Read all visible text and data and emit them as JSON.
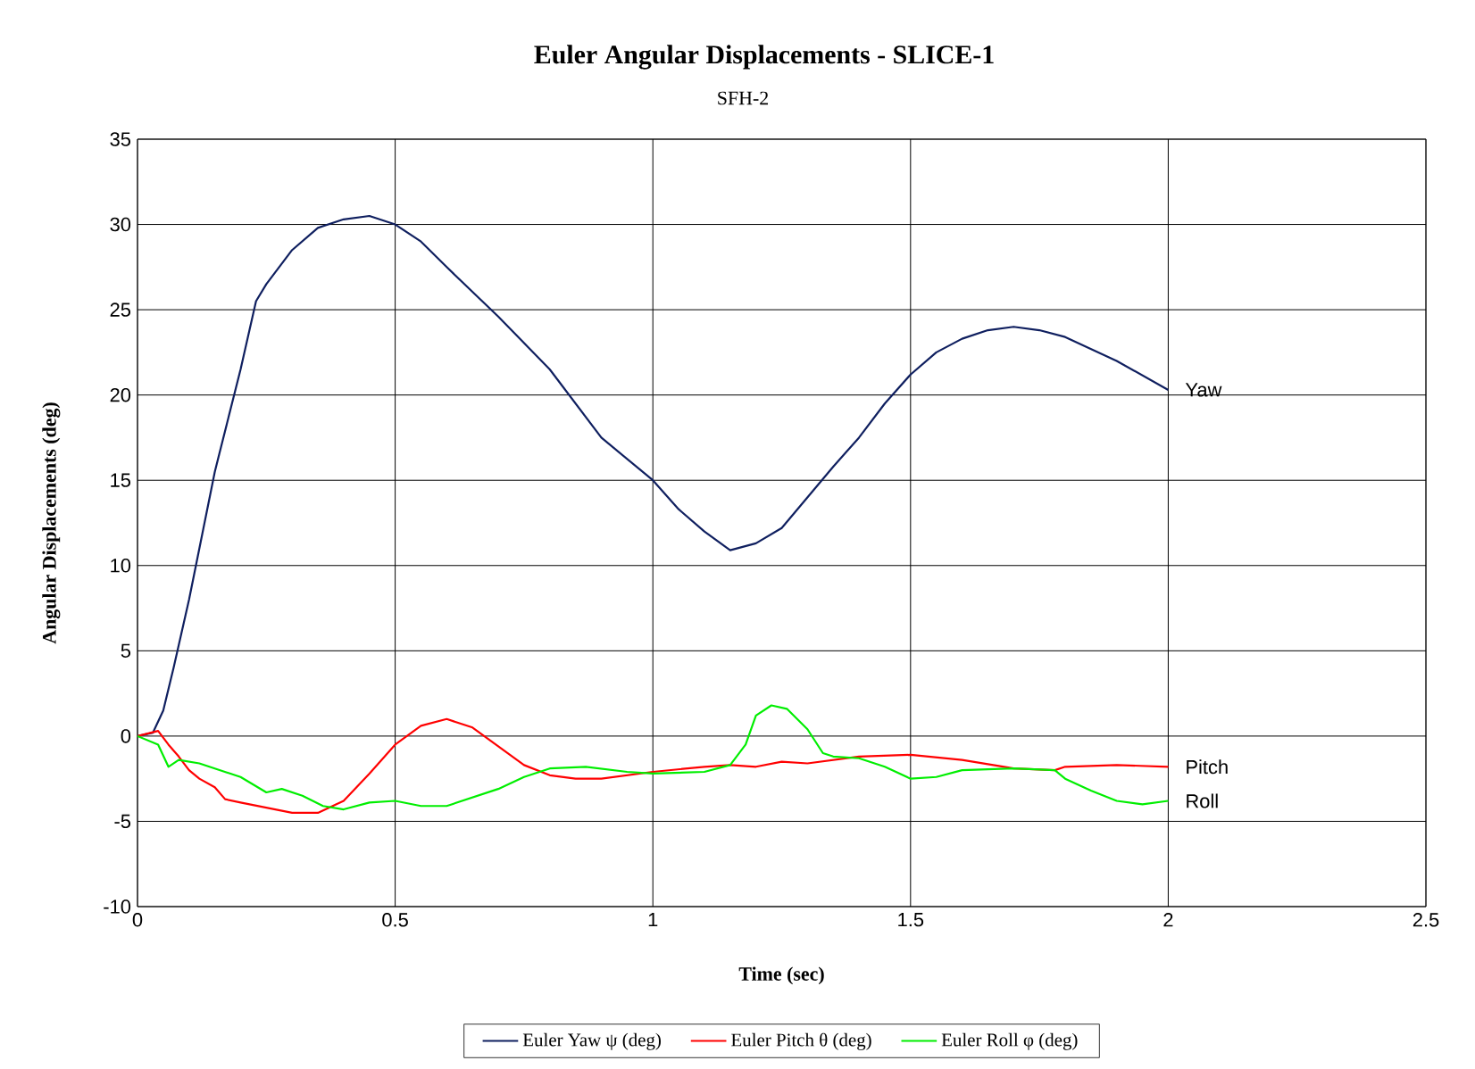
{
  "chart_data": {
    "type": "line",
    "title": "Euler Angular Displacements - SLICE-1",
    "subtitle": "SFH-2",
    "xlabel": "Time (sec)",
    "ylabel": "Angular Displacements (deg)",
    "xlim": [
      0,
      2.5
    ],
    "ylim": [
      -10,
      35
    ],
    "xticks": [
      0,
      0.5,
      1,
      1.5,
      2,
      2.5
    ],
    "yticks": [
      -10,
      -5,
      0,
      5,
      10,
      15,
      20,
      25,
      30,
      35
    ],
    "grid": true,
    "legend": "bottom",
    "marker": "none",
    "line_style": "solid",
    "annotations": [
      "Yaw",
      "Pitch",
      "Roll"
    ],
    "series": [
      {
        "name": "Euler Yaw ψ (deg)",
        "color": "#0f1f5f",
        "x": [
          0,
          0.03,
          0.05,
          0.07,
          0.1,
          0.12,
          0.15,
          0.2,
          0.23,
          0.25,
          0.3,
          0.35,
          0.4,
          0.45,
          0.5,
          0.55,
          0.6,
          0.7,
          0.8,
          0.9,
          1.0,
          1.05,
          1.1,
          1.15,
          1.2,
          1.25,
          1.3,
          1.35,
          1.4,
          1.45,
          1.5,
          1.55,
          1.6,
          1.65,
          1.7,
          1.75,
          1.8,
          1.9,
          2.0
        ],
        "values": [
          0,
          0.2,
          1.5,
          4,
          8,
          11,
          15.5,
          21.5,
          25.5,
          26.5,
          28.5,
          29.8,
          30.3,
          30.5,
          30,
          29,
          27.5,
          24.6,
          21.5,
          17.5,
          15,
          13.3,
          12,
          10.9,
          11.3,
          12.2,
          14,
          15.8,
          17.5,
          19.5,
          21.2,
          22.5,
          23.3,
          23.8,
          24,
          23.8,
          23.4,
          22,
          20.3
        ]
      },
      {
        "name": "Euler Pitch θ (deg)",
        "color": "#ff0000",
        "x": [
          0,
          0.04,
          0.06,
          0.08,
          0.1,
          0.12,
          0.15,
          0.17,
          0.2,
          0.25,
          0.3,
          0.35,
          0.4,
          0.45,
          0.5,
          0.55,
          0.6,
          0.65,
          0.7,
          0.75,
          0.8,
          0.85,
          0.9,
          1.0,
          1.1,
          1.15,
          1.2,
          1.25,
          1.3,
          1.4,
          1.5,
          1.6,
          1.7,
          1.78,
          1.8,
          1.9,
          2.0
        ],
        "values": [
          0,
          0.3,
          -0.5,
          -1.2,
          -2,
          -2.5,
          -3,
          -3.7,
          -3.9,
          -4.2,
          -4.5,
          -4.5,
          -3.8,
          -2.2,
          -0.5,
          0.6,
          1.0,
          0.5,
          -0.6,
          -1.7,
          -2.3,
          -2.5,
          -2.5,
          -2.1,
          -1.8,
          -1.7,
          -1.8,
          -1.5,
          -1.6,
          -1.2,
          -1.1,
          -1.4,
          -1.9,
          -2.0,
          -1.8,
          -1.7,
          -1.8
        ]
      },
      {
        "name": "Euler Roll φ (deg)",
        "color": "#00ee00",
        "x": [
          0,
          0.04,
          0.06,
          0.08,
          0.12,
          0.15,
          0.2,
          0.25,
          0.28,
          0.32,
          0.36,
          0.4,
          0.45,
          0.5,
          0.55,
          0.6,
          0.7,
          0.75,
          0.8,
          0.87,
          0.95,
          1.0,
          1.1,
          1.15,
          1.18,
          1.2,
          1.23,
          1.26,
          1.3,
          1.33,
          1.35,
          1.4,
          1.45,
          1.5,
          1.55,
          1.6,
          1.7,
          1.78,
          1.8,
          1.85,
          1.9,
          1.95,
          2.0
        ],
        "values": [
          0,
          -0.5,
          -1.8,
          -1.4,
          -1.6,
          -1.9,
          -2.4,
          -3.3,
          -3.1,
          -3.5,
          -4.1,
          -4.3,
          -3.9,
          -3.8,
          -4.1,
          -4.1,
          -3.1,
          -2.4,
          -1.9,
          -1.8,
          -2.1,
          -2.2,
          -2.1,
          -1.7,
          -0.5,
          1.2,
          1.8,
          1.6,
          0.4,
          -1.0,
          -1.2,
          -1.3,
          -1.8,
          -2.5,
          -2.4,
          -2.0,
          -1.9,
          -2.0,
          -2.5,
          -3.2,
          -3.8,
          -4.0,
          -3.8
        ]
      }
    ]
  }
}
